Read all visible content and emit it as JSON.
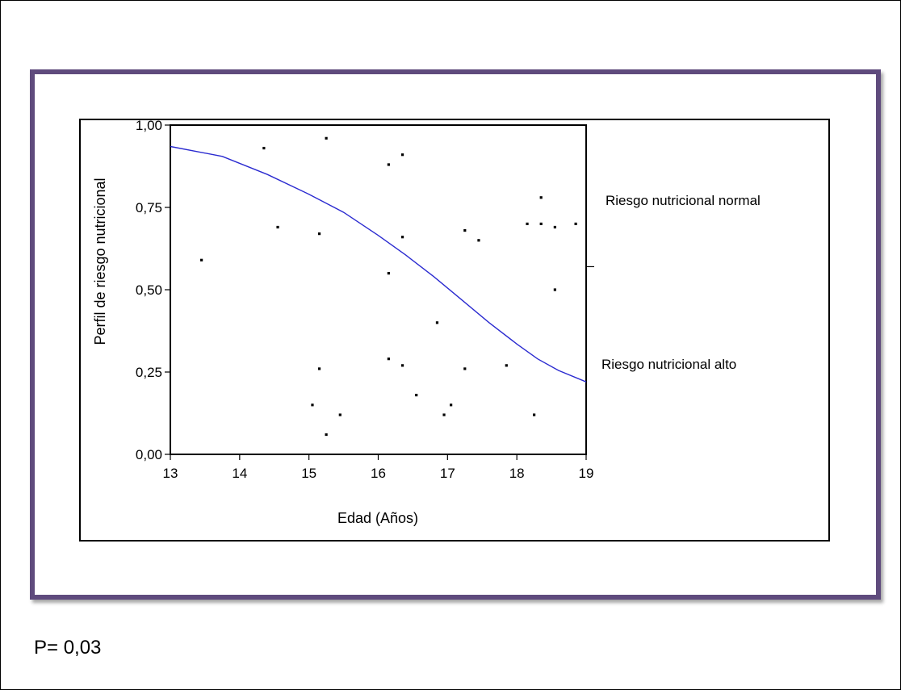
{
  "footer": {
    "p_value": "P= 0,03"
  },
  "chart_data": {
    "type": "scatter",
    "xlabel": "Edad (Años)",
    "ylabel": "Perfil de riesgo nutricional",
    "xlim": [
      13,
      19
    ],
    "ylim": [
      0,
      1
    ],
    "x_ticks": [
      13,
      14,
      15,
      16,
      17,
      18,
      19
    ],
    "x_tick_labels": [
      "13",
      "14",
      "15",
      "16",
      "17",
      "18",
      "19"
    ],
    "y_ticks": [
      0,
      0.25,
      0.5,
      0.75,
      1
    ],
    "y_tick_labels": [
      "0,00",
      "0,25",
      "0,50",
      "0,75",
      "1,00"
    ],
    "grid": false,
    "annotations": {
      "upper": "Riesgo nutricional normal",
      "lower": "Riesgo nutricional alto",
      "divider_y": 0.57
    },
    "point_color": "#000000",
    "curve_color": "#2b2bd0",
    "points": [
      {
        "x": 13.45,
        "y": 0.59
      },
      {
        "x": 14.35,
        "y": 0.93
      },
      {
        "x": 14.55,
        "y": 0.69
      },
      {
        "x": 15.05,
        "y": 0.15
      },
      {
        "x": 15.15,
        "y": 0.67
      },
      {
        "x": 15.15,
        "y": 0.26
      },
      {
        "x": 15.25,
        "y": 0.96
      },
      {
        "x": 15.25,
        "y": 0.06
      },
      {
        "x": 15.45,
        "y": 0.12
      },
      {
        "x": 16.15,
        "y": 0.88
      },
      {
        "x": 16.15,
        "y": 0.55
      },
      {
        "x": 16.15,
        "y": 0.29
      },
      {
        "x": 16.35,
        "y": 0.91
      },
      {
        "x": 16.35,
        "y": 0.66
      },
      {
        "x": 16.35,
        "y": 0.27
      },
      {
        "x": 16.55,
        "y": 0.18
      },
      {
        "x": 16.85,
        "y": 0.4
      },
      {
        "x": 16.95,
        "y": 0.12
      },
      {
        "x": 17.05,
        "y": 0.15
      },
      {
        "x": 17.25,
        "y": 0.68
      },
      {
        "x": 17.25,
        "y": 0.26
      },
      {
        "x": 17.45,
        "y": 0.65
      },
      {
        "x": 17.85,
        "y": 0.27
      },
      {
        "x": 18.15,
        "y": 0.7
      },
      {
        "x": 18.25,
        "y": 0.12
      },
      {
        "x": 18.35,
        "y": 0.78
      },
      {
        "x": 18.35,
        "y": 0.7
      },
      {
        "x": 18.55,
        "y": 0.69
      },
      {
        "x": 18.55,
        "y": 0.5
      },
      {
        "x": 18.85,
        "y": 0.7
      }
    ],
    "curve": [
      {
        "x": 13.0,
        "y": 0.935
      },
      {
        "x": 13.75,
        "y": 0.905
      },
      {
        "x": 14.4,
        "y": 0.85
      },
      {
        "x": 15.0,
        "y": 0.79
      },
      {
        "x": 15.5,
        "y": 0.735
      },
      {
        "x": 16.0,
        "y": 0.665
      },
      {
        "x": 16.4,
        "y": 0.605
      },
      {
        "x": 16.8,
        "y": 0.54
      },
      {
        "x": 17.2,
        "y": 0.47
      },
      {
        "x": 17.6,
        "y": 0.4
      },
      {
        "x": 18.0,
        "y": 0.335
      },
      {
        "x": 18.3,
        "y": 0.29
      },
      {
        "x": 18.6,
        "y": 0.255
      },
      {
        "x": 19.0,
        "y": 0.22
      }
    ]
  }
}
